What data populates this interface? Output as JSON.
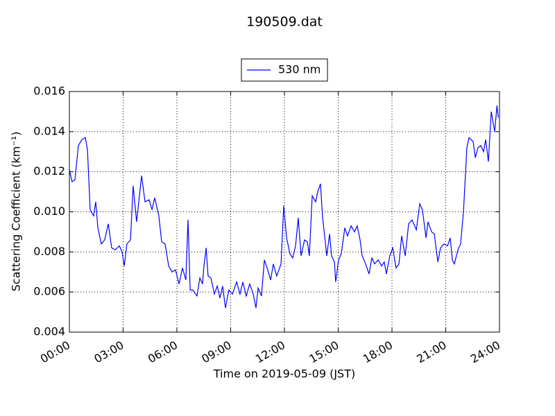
{
  "chart_data": {
    "type": "line",
    "title": "190509.dat",
    "xlabel": "Time on 2019-05-09 (JST)",
    "ylabel": "Scattering Coefficient (km⁻¹)",
    "x": [
      0,
      0.15,
      0.31,
      0.5,
      0.7,
      0.89,
      1.01,
      1.16,
      1.35,
      1.47,
      1.59,
      1.78,
      1.97,
      2.17,
      2.36,
      2.55,
      2.79,
      2.94,
      3.06,
      3.21,
      3.41,
      3.56,
      3.75,
      4.03,
      4.22,
      4.45,
      4.61,
      4.76,
      4.99,
      5.15,
      5.34,
      5.54,
      5.73,
      5.92,
      6.12,
      6.31,
      6.5,
      6.62,
      6.74,
      6.89,
      7.12,
      7.28,
      7.43,
      7.51,
      7.63,
      7.74,
      7.9,
      8.09,
      8.25,
      8.4,
      8.55,
      8.71,
      8.9,
      9.1,
      9.33,
      9.52,
      9.68,
      9.87,
      10.06,
      10.26,
      10.41,
      10.53,
      10.72,
      10.88,
      11.07,
      11.23,
      11.38,
      11.57,
      11.81,
      11.96,
      12.12,
      12.31,
      12.46,
      12.62,
      12.77,
      12.93,
      13.12,
      13.28,
      13.39,
      13.55,
      13.74,
      13.86,
      14.01,
      14.13,
      14.28,
      14.36,
      14.52,
      14.63,
      14.79,
      14.86,
      15.02,
      15.17,
      15.37,
      15.52,
      15.72,
      15.91,
      16.06,
      16.22,
      16.34,
      16.53,
      16.72,
      16.88,
      17.03,
      17.23,
      17.42,
      17.57,
      17.69,
      17.88,
      18.04,
      18.23,
      18.39,
      18.54,
      18.74,
      18.93,
      19.12,
      19.36,
      19.55,
      19.7,
      19.9,
      20.01,
      20.21,
      20.36,
      20.56,
      20.71,
      20.9,
      21.1,
      21.25,
      21.37,
      21.48,
      21.68,
      21.83,
      21.99,
      22.18,
      22.3,
      22.53,
      22.65,
      22.8,
      22.96,
      23.11,
      23.23,
      23.38,
      23.54,
      23.73,
      23.86,
      23.93
    ],
    "series": [
      {
        "name": "530 nm",
        "color": "#0000ff",
        "values": [
          0.0121,
          0.0115,
          0.0116,
          0.0133,
          0.0136,
          0.0137,
          0.0131,
          0.0101,
          0.0098,
          0.0105,
          0.0092,
          0.0084,
          0.0086,
          0.0094,
          0.0082,
          0.0081,
          0.0083,
          0.008,
          0.0073,
          0.0084,
          0.0086,
          0.0113,
          0.0095,
          0.0118,
          0.0105,
          0.0106,
          0.0101,
          0.0107,
          0.0098,
          0.0085,
          0.0084,
          0.0073,
          0.007,
          0.0071,
          0.0064,
          0.0072,
          0.0066,
          0.0096,
          0.0061,
          0.0061,
          0.0058,
          0.0067,
          0.0064,
          0.0073,
          0.0082,
          0.0068,
          0.0067,
          0.0059,
          0.0063,
          0.0057,
          0.0063,
          0.0052,
          0.0061,
          0.0059,
          0.0065,
          0.0059,
          0.0065,
          0.0058,
          0.0064,
          0.0059,
          0.0052,
          0.0062,
          0.0058,
          0.0076,
          0.0071,
          0.0066,
          0.0074,
          0.0068,
          0.0074,
          0.0103,
          0.0087,
          0.0079,
          0.0077,
          0.0083,
          0.0097,
          0.0078,
          0.0086,
          0.0085,
          0.0078,
          0.0108,
          0.0105,
          0.011,
          0.0114,
          0.0097,
          0.0085,
          0.0078,
          0.0089,
          0.0078,
          0.0075,
          0.0065,
          0.0076,
          0.0079,
          0.0092,
          0.0088,
          0.0093,
          0.009,
          0.0093,
          0.0086,
          0.0078,
          0.0074,
          0.0069,
          0.0077,
          0.0074,
          0.0076,
          0.0073,
          0.0075,
          0.0069,
          0.0078,
          0.0082,
          0.0072,
          0.0074,
          0.0088,
          0.0078,
          0.0094,
          0.0096,
          0.0091,
          0.0104,
          0.0101,
          0.0087,
          0.0095,
          0.009,
          0.0089,
          0.0075,
          0.0082,
          0.0084,
          0.0083,
          0.0087,
          0.0076,
          0.0074,
          0.0081,
          0.0084,
          0.01,
          0.0132,
          0.0137,
          0.0135,
          0.0127,
          0.0132,
          0.0133,
          0.013,
          0.0136,
          0.0125,
          0.015,
          0.014,
          0.0153,
          0.0147
        ]
      }
    ],
    "xlim": [
      0,
      24
    ],
    "xticks": [
      {
        "value": 0,
        "label": "00:00"
      },
      {
        "value": 3,
        "label": "03:00"
      },
      {
        "value": 6,
        "label": "06:00"
      },
      {
        "value": 9,
        "label": "09:00"
      },
      {
        "value": 12,
        "label": "12:00"
      },
      {
        "value": 15,
        "label": "15:00"
      },
      {
        "value": 18,
        "label": "18:00"
      },
      {
        "value": 21,
        "label": "21:00"
      },
      {
        "value": 24,
        "label": "24:00"
      }
    ],
    "ylim": [
      0.004,
      0.016
    ],
    "yticks": [
      0.004,
      0.006,
      0.008,
      {
        "value": 0.01,
        "label": "0.010"
      },
      0.012,
      0.014,
      0.016
    ],
    "grid": true,
    "legend": "top"
  }
}
